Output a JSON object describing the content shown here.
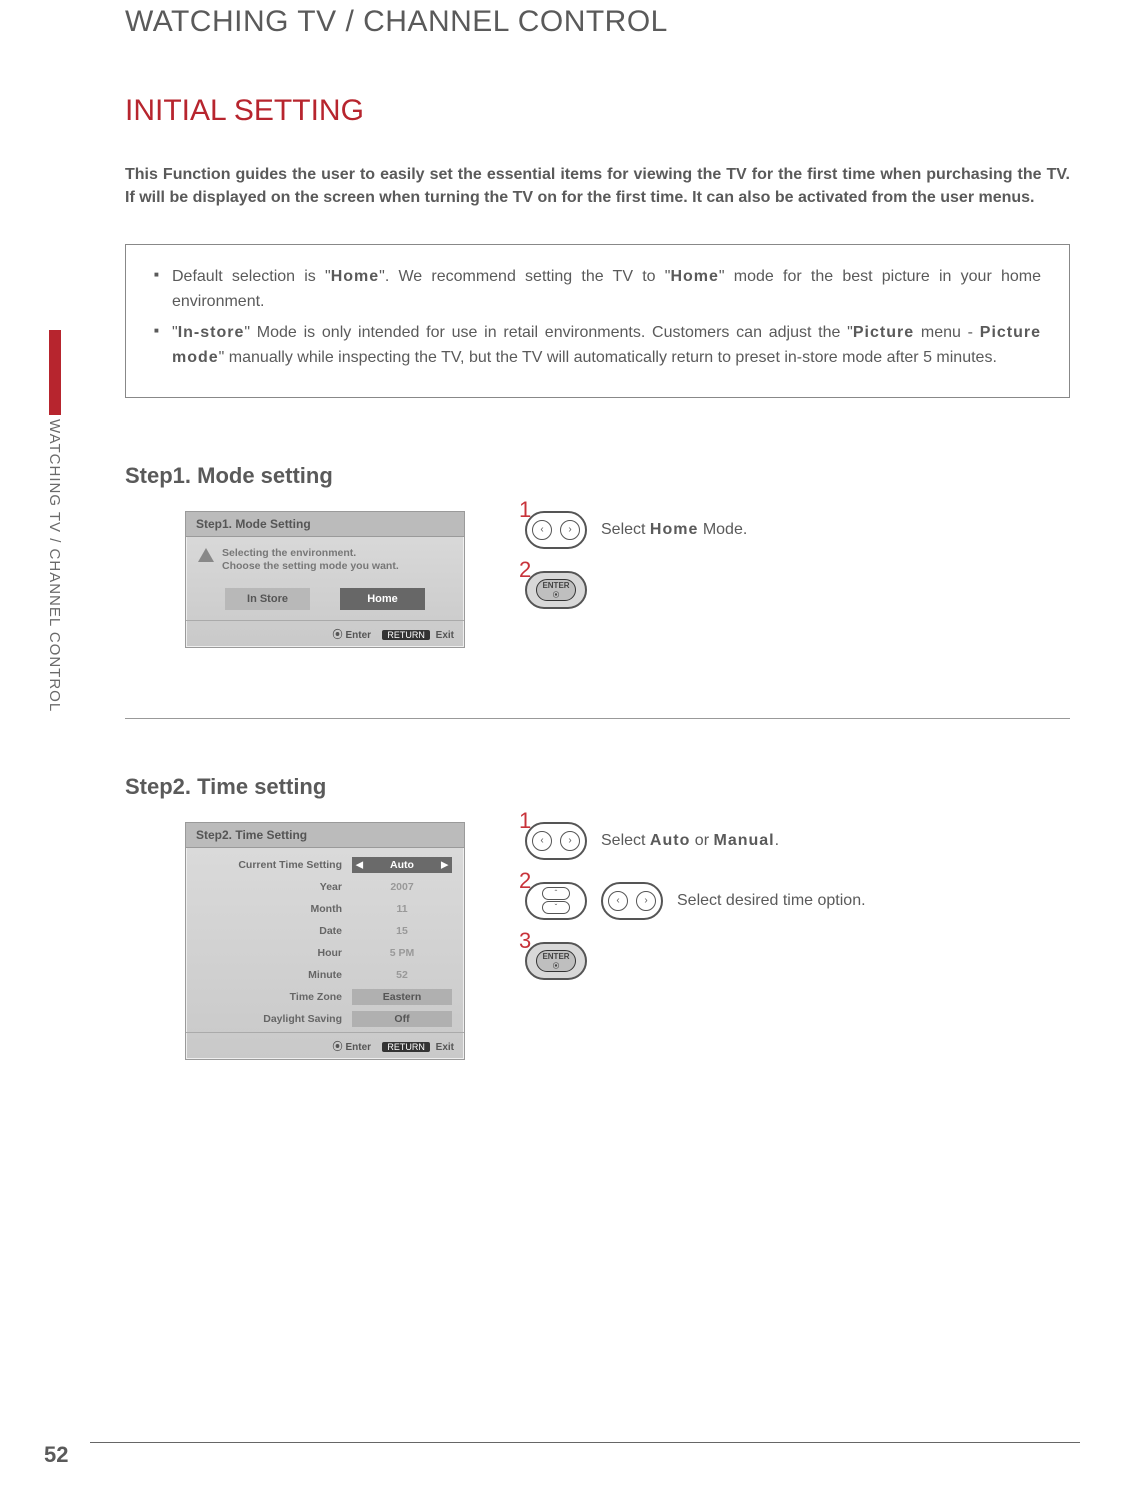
{
  "page": {
    "header": "WATCHING TV / CHANNEL CONTROL",
    "side_tab": "WATCHING TV / CHANNEL CONTROL",
    "number": "52"
  },
  "colors": {
    "accent": "#b7252e",
    "text": "#5a5a5a",
    "osd_dark": "#676767",
    "osd_light": "#b8b8b8"
  },
  "section": {
    "title": "INITIAL SETTING",
    "intro": "This Function guides the user to easily set the essential items for viewing the TV for the first time when purchasing the TV. If will be displayed on the screen when turning the TV on for the first time. It can also be activated from the user menus."
  },
  "notes": {
    "n1_a": "Default selection is \"",
    "n1_b": "Home",
    "n1_c": "\". We recommend setting the TV to \"",
    "n1_d": "Home",
    "n1_e": "\" mode for the best picture in your home environment.",
    "n2_a": "\"",
    "n2_b": "In-store",
    "n2_c": "\" Mode is only intended for use in retail environments. Customers can adjust the \"",
    "n2_d": "Picture",
    "n2_e": " menu - ",
    "n2_f": "Picture mode",
    "n2_g": "\" manually while inspecting the TV, but the TV will automatically return to preset in-store mode after 5 minutes."
  },
  "step1": {
    "heading": "Step1. Mode setting",
    "osd_title": "Step1. Mode Setting",
    "msg_l1": "Selecting the environment.",
    "msg_l2": "Choose the setting mode you want.",
    "btn_instore": "In Store",
    "btn_home": "Home",
    "footer_enter": "Enter",
    "footer_return": "RETURN",
    "footer_exit": "Exit",
    "inst1_a": "Select ",
    "inst1_b": "Home",
    "inst1_c": " Mode.",
    "num1": "1",
    "num2": "2",
    "enter_label": "ENTER"
  },
  "step2": {
    "heading": "Step2. Time setting",
    "osd_title": "Step2. Time Setting",
    "rows": [
      {
        "label": "Current Time Setting",
        "value": "Auto",
        "style": "dark",
        "arrows": true
      },
      {
        "label": "Year",
        "value": "2007",
        "style": "dim"
      },
      {
        "label": "Month",
        "value": "11",
        "style": "dim"
      },
      {
        "label": "Date",
        "value": "15",
        "style": "dim"
      },
      {
        "label": "Hour",
        "value": "5 PM",
        "style": "dim"
      },
      {
        "label": "Minute",
        "value": "52",
        "style": "dim"
      },
      {
        "label": "Time Zone",
        "value": "Eastern",
        "style": "med"
      },
      {
        "label": "Daylight Saving",
        "value": "Off",
        "style": "med"
      }
    ],
    "footer_enter": "Enter",
    "footer_return": "RETURN",
    "footer_exit": "Exit",
    "inst1_a": "Select ",
    "inst1_b": "Auto",
    "inst1_c": " or ",
    "inst1_d": "Manual",
    "inst1_e": ".",
    "inst2": "Select desired time option.",
    "num1": "1",
    "num2": "2",
    "num3": "3",
    "enter_label": "ENTER"
  }
}
